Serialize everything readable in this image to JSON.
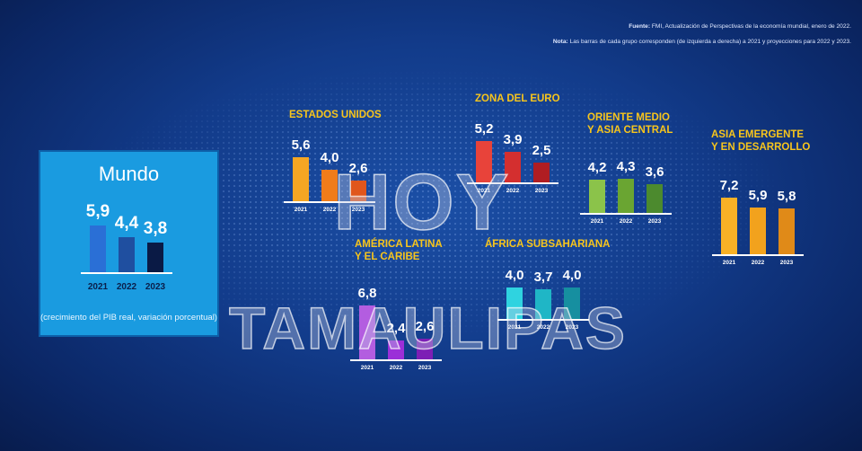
{
  "source": {
    "label": "Fuente:",
    "text": "FMI, Actualización de Perspectivas de la economía mundial, enero de 2022."
  },
  "note": {
    "label": "Nota:",
    "text": "Las barras de cada grupo corresponden (de izquierda a derecha) a 2021 y proyecciones para 2022 y 2023."
  },
  "watermark": {
    "line1": "HOY",
    "line2": "TAMAULIPAS"
  },
  "chart_data": {
    "type": "bar",
    "title": "Mundo",
    "caption": "(crecimiento del PIB real, variación porcentual)",
    "categories": [
      "2021",
      "2022",
      "2023"
    ],
    "series": [
      {
        "name": "Mundo",
        "values": [
          5.9,
          4.4,
          3.8
        ],
        "labels": [
          "5,9",
          "4,4",
          "3,8"
        ],
        "colors": [
          "#2a6fd6",
          "#1f4fa0",
          "#0a1a45"
        ]
      },
      {
        "name": "ESTADOS UNIDOS",
        "values": [
          5.6,
          4.0,
          2.6
        ],
        "labels": [
          "5,6",
          "4,0",
          "2,6"
        ],
        "colors": [
          "#f5a623",
          "#f07c1a",
          "#e0561c"
        ]
      },
      {
        "name": "ZONA DEL EURO",
        "values": [
          5.2,
          3.9,
          2.5
        ],
        "labels": [
          "5,2",
          "3,9",
          "2,5"
        ],
        "colors": [
          "#e8433a",
          "#d42f2f",
          "#b01d22"
        ]
      },
      {
        "name": "ORIENTE MEDIO Y ASIA CENTRAL",
        "values": [
          4.2,
          4.3,
          3.6
        ],
        "labels": [
          "4,2",
          "4,3",
          "3,6"
        ],
        "colors": [
          "#8bc34a",
          "#6aa532",
          "#4c8a2e"
        ]
      },
      {
        "name": "ASIA EMERGENTE Y EN DESARROLLO",
        "values": [
          7.2,
          5.9,
          5.8
        ],
        "labels": [
          "7,2",
          "5,9",
          "5,8"
        ],
        "colors": [
          "#f8b126",
          "#f2a21d",
          "#e08a18"
        ]
      },
      {
        "name": "AMÉRICA LATINA Y EL CARIBE",
        "values": [
          6.8,
          2.4,
          2.6
        ],
        "labels": [
          "6,8",
          "2,4",
          "2,6"
        ],
        "colors": [
          "#b35de0",
          "#9b2fd8",
          "#7d1fb5"
        ]
      },
      {
        "name": "ÁFRICA SUBSAHARIANA",
        "values": [
          4.0,
          3.7,
          4.0
        ],
        "labels": [
          "4,0",
          "3,7",
          "4,0"
        ],
        "colors": [
          "#2fd3e0",
          "#1fb6c6",
          "#168fa0"
        ]
      }
    ],
    "ylabel": "crecimiento del PIB real, variación porcentual"
  }
}
